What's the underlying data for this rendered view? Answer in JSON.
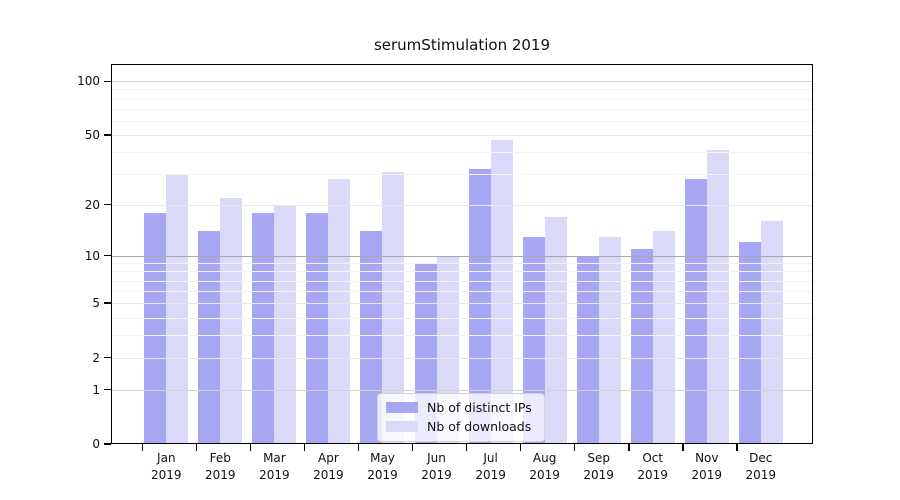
{
  "page": {
    "background": "#ffffff"
  },
  "chart_data": {
    "type": "bar",
    "title": "serumStimulation 2019",
    "categories": [
      "Jan 2019",
      "Feb 2019",
      "Mar 2019",
      "Apr 2019",
      "May 2019",
      "Jun 2019",
      "Jul 2019",
      "Aug 2019",
      "Sep 2019",
      "Oct 2019",
      "Nov 2019",
      "Dec 2019"
    ],
    "series": [
      {
        "name": "Nb of distinct IPs",
        "color": "#a6a6f3",
        "values": [
          18,
          14,
          18,
          18,
          14,
          9,
          32,
          13,
          10,
          11,
          28,
          12
        ]
      },
      {
        "name": "Nb of downloads",
        "color": "#dadaf8",
        "values": [
          30,
          22,
          20,
          28,
          31,
          10,
          47,
          17,
          13,
          14,
          41,
          16
        ]
      }
    ],
    "xlabel": "",
    "ylabel": "",
    "y_axis": {
      "scale": "log(1+x)",
      "major_ticks": [
        0,
        1,
        2,
        5,
        10,
        20,
        50,
        100
      ],
      "minor_ticks": [
        3,
        4,
        6,
        7,
        8,
        9,
        30,
        40,
        60,
        70,
        80,
        90
      ],
      "ylim": [
        0,
        125
      ]
    },
    "grid": true,
    "legend_position": "lower-center"
  },
  "legend": {
    "items": [
      {
        "label": "Nb of distinct IPs",
        "color": "#a6a6f3"
      },
      {
        "label": "Nb of downloads",
        "color": "#dadaf8"
      }
    ]
  },
  "colors": {
    "axis": "#000000",
    "text": "#111111",
    "grid_strong": "#a8a8a8",
    "grid_mid": "#d2d2d2",
    "grid_major": "#e8e8e8",
    "grid_minor": "#f4f4f4"
  }
}
